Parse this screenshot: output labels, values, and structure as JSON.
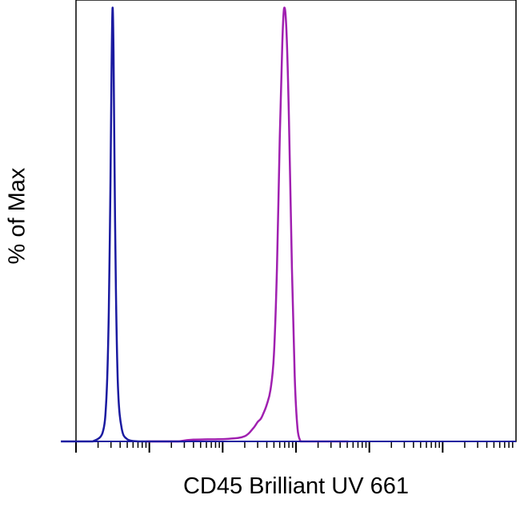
{
  "chart_data": {
    "type": "histogram-overlay",
    "title": "",
    "xlabel": "CD45 Brilliant UV 661",
    "ylabel": "% of Max",
    "x_scale": "log",
    "xlim": [
      1,
      1000000
    ],
    "ylim": [
      0,
      100
    ],
    "x_tick_labels_shown": false,
    "series": [
      {
        "color": "#1a1aa0",
        "points": [
          [
            1.7,
            0
          ],
          [
            2.3,
            2
          ],
          [
            2.6,
            10
          ],
          [
            2.8,
            30
          ],
          [
            2.95,
            60
          ],
          [
            3.05,
            85
          ],
          [
            3.15,
            100
          ],
          [
            3.25,
            90
          ],
          [
            3.35,
            65
          ],
          [
            3.5,
            35
          ],
          [
            3.75,
            12
          ],
          [
            4.2,
            3
          ],
          [
            5.0,
            0.5
          ],
          [
            7.0,
            0
          ]
        ]
      },
      {
        "color": "#a020b0",
        "points": [
          [
            25,
            0
          ],
          [
            40,
            0.4
          ],
          [
            120,
            0.6
          ],
          [
            200,
            1.2
          ],
          [
            260,
            3
          ],
          [
            300,
            4.5
          ],
          [
            330,
            5.2
          ],
          [
            360,
            6.5
          ],
          [
            400,
            8.5
          ],
          [
            450,
            12
          ],
          [
            500,
            20
          ],
          [
            550,
            40
          ],
          [
            600,
            70
          ],
          [
            650,
            92
          ],
          [
            690,
            100
          ],
          [
            740,
            95
          ],
          [
            800,
            75
          ],
          [
            880,
            40
          ],
          [
            960,
            15
          ],
          [
            1050,
            3
          ],
          [
            1150,
            0
          ]
        ]
      }
    ]
  }
}
